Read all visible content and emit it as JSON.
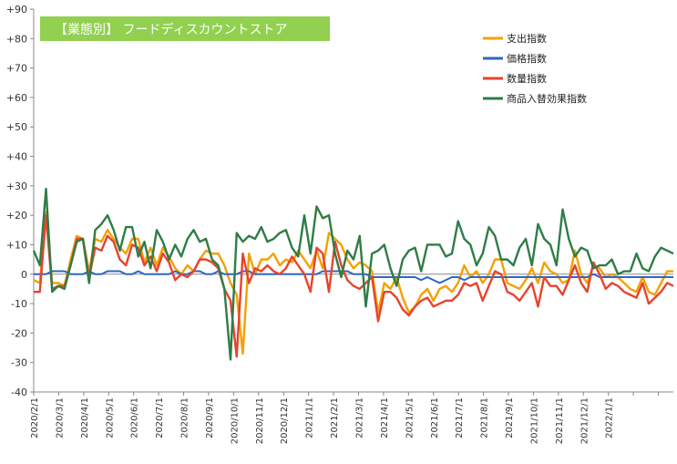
{
  "chart_data": {
    "type": "line",
    "title": "【業態別】 フードディスカウントストア",
    "title_bg_color": "#92D050",
    "title_text_color": "#ffffff",
    "ylim": [
      -40,
      90
    ],
    "y_ticks": [
      "-40",
      "-30",
      "-20",
      "-10",
      "0",
      "+10",
      "+20",
      "+30",
      "+40",
      "+50",
      "+60",
      "+70",
      "+80",
      "+90"
    ],
    "x_ticks": [
      "2020/2/1",
      "2020/3/1",
      "2020/4/1",
      "2020/5/1",
      "2020/6/1",
      "2020/7/1",
      "2020/8/1",
      "2020/9/1",
      "2020/10/1",
      "2020/11/1",
      "2020/12/1",
      "2021/1/1",
      "2021/2/1",
      "2021/3/1",
      "2021/4/1",
      "2021/5/1",
      "2021/6/1",
      "2021/7/1",
      "2021/8/1",
      "2021/9/1",
      "2021/10/1",
      "2021/11/1",
      "2021/12/1",
      "2022/1/1"
    ],
    "grid": false,
    "legend_position": "top-right",
    "series": [
      {
        "name": "支出指数",
        "color": "#F5A000",
        "values": [
          -2,
          -3,
          21,
          -3,
          -3,
          -4,
          5,
          13,
          12,
          1,
          12,
          11,
          15,
          12,
          9,
          7,
          12,
          12,
          4,
          9,
          3,
          9,
          6,
          2,
          0,
          3,
          1,
          5,
          8,
          7,
          7,
          3,
          -3,
          -7,
          -27,
          7,
          0,
          5,
          5,
          7,
          3,
          5,
          4,
          8,
          5,
          2,
          8,
          2,
          14,
          12,
          10,
          5,
          2,
          4,
          3,
          1,
          -13,
          -3,
          -5,
          -1,
          -8,
          -13,
          -11,
          -7,
          -5,
          -9,
          -5,
          -4,
          -6,
          -3,
          3,
          -1,
          1,
          -3,
          0,
          5,
          5,
          -3,
          -4,
          -5,
          -2,
          2,
          -3,
          4,
          1,
          0,
          -3,
          -2,
          8,
          0,
          -3,
          3,
          2,
          -1,
          0,
          -1,
          -3,
          -5,
          -6,
          -1,
          -6,
          -7,
          -3,
          1,
          1
        ]
      },
      {
        "name": "価格指数",
        "color": "#2E66C4",
        "values": [
          0,
          0,
          0,
          1,
          1,
          1,
          0,
          0,
          0,
          1,
          0,
          0,
          1,
          1,
          1,
          0,
          0,
          1,
          0,
          0,
          0,
          0,
          0,
          1,
          0,
          0,
          1,
          1,
          0,
          0,
          1,
          0,
          0,
          0,
          1,
          1,
          0,
          0,
          0,
          0,
          0,
          0,
          0,
          0,
          0,
          0,
          0,
          1,
          1,
          1,
          1,
          1,
          0,
          0,
          0,
          -1,
          -1,
          -1,
          -1,
          -1,
          -1,
          -1,
          -1,
          -2,
          -1,
          -2,
          -3,
          -2,
          -1,
          -1,
          -2,
          -1,
          -1,
          -1,
          -1,
          -1,
          -1,
          -1,
          -1,
          -1,
          -1,
          -1,
          -1,
          -1,
          -1,
          -1,
          -1,
          -1,
          -1,
          -1,
          -1,
          0,
          -1,
          -1,
          -1,
          -1,
          -1,
          -1,
          -1,
          -1,
          -1,
          -1,
          -1,
          -1,
          -1
        ]
      },
      {
        "name": "数量指数",
        "color": "#E8432D",
        "values": [
          -6,
          -6,
          20,
          -5,
          -4,
          -4,
          3,
          12,
          12,
          -1,
          9,
          8,
          13,
          11,
          5,
          3,
          10,
          9,
          3,
          6,
          1,
          7,
          4,
          -2,
          0,
          -1,
          1,
          5,
          5,
          4,
          2,
          -5,
          -9,
          -28,
          7,
          -3,
          2,
          1,
          3,
          1,
          0,
          2,
          6,
          3,
          0,
          -6,
          9,
          7,
          -6,
          11,
          3,
          -2,
          -4,
          -5,
          -3,
          -1,
          -16,
          -6,
          -6,
          -8,
          -12,
          -14,
          -11,
          -9,
          -8,
          -11,
          -10,
          -9,
          -9,
          -7,
          -3,
          -4,
          -3,
          -9,
          -4,
          1,
          0,
          -6,
          -7,
          -9,
          -6,
          -3,
          -11,
          -1,
          -4,
          -4,
          -7,
          -2,
          3,
          -3,
          -6,
          4,
          0,
          -5,
          -3,
          -4,
          -6,
          -7,
          -8,
          -3,
          -10,
          -8,
          -6,
          -3,
          -4
        ]
      },
      {
        "name": "商品入替効果指数",
        "color": "#2E7D46",
        "values": [
          8,
          3,
          29,
          -6,
          -4,
          -5,
          3,
          11,
          12,
          -3,
          15,
          17,
          20,
          15,
          8,
          16,
          16,
          6,
          11,
          2,
          15,
          11,
          5,
          10,
          6,
          12,
          15,
          11,
          12,
          5,
          3,
          -5,
          -29,
          14,
          11,
          13,
          12,
          16,
          11,
          12,
          14,
          15,
          9,
          6,
          20,
          7,
          23,
          19,
          20,
          7,
          -1,
          8,
          5,
          13,
          -11,
          7,
          8,
          10,
          2,
          -4,
          5,
          8,
          9,
          1,
          10,
          10,
          10,
          6,
          7,
          18,
          12,
          10,
          3,
          7,
          16,
          13,
          5,
          5,
          3,
          9,
          12,
          3,
          17,
          12,
          10,
          3,
          22,
          12,
          6,
          9,
          8,
          2,
          3,
          3,
          5,
          0,
          1,
          1,
          7,
          2,
          1,
          6,
          9,
          8,
          7
        ]
      }
    ]
  }
}
